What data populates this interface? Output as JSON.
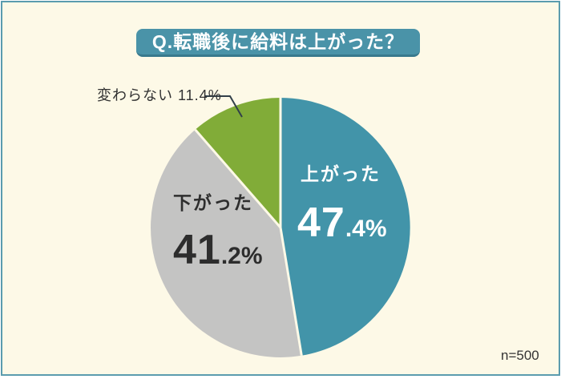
{
  "title": {
    "text": "Q.転職後に給料は上がった？"
  },
  "pie": {
    "slice_increased": {
      "label": "上がった",
      "value_int": "47",
      "value_frac": ".4%"
    },
    "slice_decreased": {
      "label": "下がった",
      "value_int": "41",
      "value_frac": ".2%"
    },
    "slice_unchanged": {
      "callout": "変わらない 11.4%"
    }
  },
  "footer": {
    "sample": "n=500"
  },
  "colors": {
    "background": "#fdf9e7",
    "frame_border": "#5b9cae",
    "title_bar": "#4a93a8",
    "title_bar_shadow": "#38798d",
    "slice_increased": "#4294a9",
    "slice_decreased": "#c4c4c3",
    "slice_unchanged": "#81ac38",
    "dark_text": "#2e2e2e",
    "callout_line": "#32404a"
  },
  "chart_data": {
    "type": "pie",
    "title": "Q.転職後に給料は上がった？",
    "categories": [
      "上がった",
      "下がった",
      "変わらない"
    ],
    "values": [
      47.4,
      41.2,
      11.4
    ],
    "colors": [
      "#4294a9",
      "#c4c4c3",
      "#81ac38"
    ],
    "start_angle_deg": 0,
    "direction": "clockwise",
    "legend_position": "none",
    "sample_size": "n=500"
  }
}
